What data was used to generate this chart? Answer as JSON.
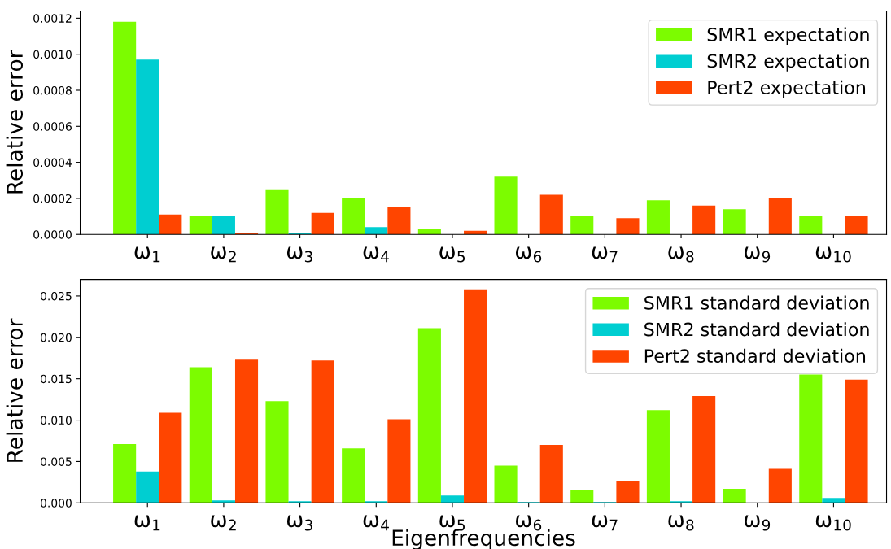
{
  "chart_data": [
    {
      "type": "bar",
      "ylabel": "Relative error",
      "categories": [
        "ω$_{1}$",
        "ω$_{2}$",
        "ω$_{3}$",
        "ω$_{4}$",
        "ω$_{5}$",
        "ω$_{6}$",
        "ω$_{7}$",
        "ω$_{8}$",
        "ω$_{9}$",
        "ω$_{10}$"
      ],
      "series": [
        {
          "name": "SMR1 expectation",
          "color": "#7cfc00",
          "values": [
            0.00118,
            0.0001,
            0.00025,
            0.0002,
            3e-05,
            0.00032,
            0.0001,
            0.00019,
            0.00014,
            0.0001
          ]
        },
        {
          "name": "SMR2 expectation",
          "color": "#00ced1",
          "values": [
            0.00097,
            0.0001,
            1e-05,
            4e-05,
            0.0,
            0.0,
            0.0,
            0.0,
            0.0,
            0.0
          ]
        },
        {
          "name": "Pert2 expectation",
          "color": "#ff4500",
          "values": [
            0.00011,
            1e-05,
            0.00012,
            0.00015,
            2e-05,
            0.00022,
            9e-05,
            0.00016,
            0.0002,
            0.0001
          ]
        }
      ],
      "ylim": [
        0,
        0.00124
      ],
      "yticks": [
        {
          "value": 0,
          "label": "0.0000"
        },
        {
          "value": 0.0002,
          "label": "0.0002"
        },
        {
          "value": 0.0004,
          "label": "0.0004"
        },
        {
          "value": 0.0006,
          "label": "0.0006"
        },
        {
          "value": 0.0008,
          "label": "0.0008"
        },
        {
          "value": 0.001,
          "label": "0.0010"
        },
        {
          "value": 0.0012,
          "label": "0.0012"
        }
      ],
      "legend": "top right",
      "grid": false
    },
    {
      "type": "bar",
      "xlabel": "Eigenfrequencies",
      "ylabel": "Relative error",
      "categories": [
        "ω$_{1}$",
        "ω$_{2}$",
        "ω$_{3}$",
        "ω$_{4}$",
        "ω$_{5}$",
        "ω$_{6}$",
        "ω$_{7}$",
        "ω$_{8}$",
        "ω$_{9}$",
        "ω$_{10}$"
      ],
      "series": [
        {
          "name": "SMR1 standard deviation",
          "color": "#7cfc00",
          "values": [
            0.0071,
            0.0164,
            0.0123,
            0.0066,
            0.0211,
            0.0045,
            0.0015,
            0.0112,
            0.0017,
            0.0155
          ]
        },
        {
          "name": "SMR2 standard deviation",
          "color": "#00ced1",
          "values": [
            0.0038,
            0.0003,
            0.0002,
            0.0002,
            0.0009,
            0.0001,
            0.0001,
            0.0002,
            0.0,
            0.0006
          ]
        },
        {
          "name": "Pert2 standard deviation",
          "color": "#ff4500",
          "values": [
            0.0109,
            0.0173,
            0.0172,
            0.0101,
            0.0258,
            0.007,
            0.0026,
            0.0129,
            0.0041,
            0.0149
          ]
        }
      ],
      "ylim": [
        0,
        0.027
      ],
      "yticks": [
        {
          "value": 0,
          "label": "0.000"
        },
        {
          "value": 0.005,
          "label": "0.005"
        },
        {
          "value": 0.01,
          "label": "0.010"
        },
        {
          "value": 0.015,
          "label": "0.015"
        },
        {
          "value": 0.02,
          "label": "0.020"
        },
        {
          "value": 0.025,
          "label": "0.025"
        }
      ],
      "legend": "top right",
      "grid": false
    }
  ]
}
